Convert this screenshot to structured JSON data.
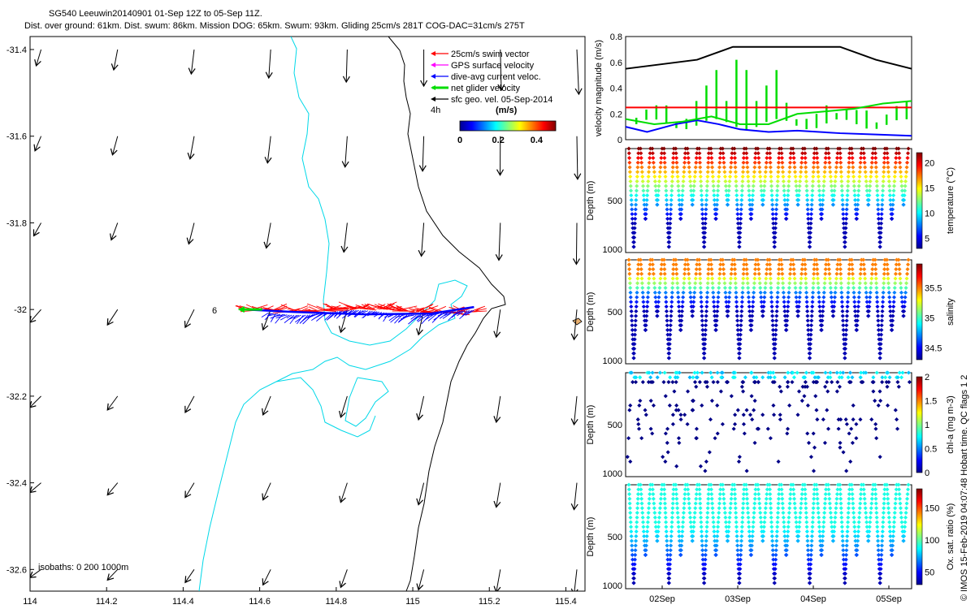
{
  "title": {
    "line1": "SG540 Leeuwin20140901 01-Sep 12Z to 05-Sep 11Z.",
    "line2": "Dist. over ground: 61km. Dist. swum: 86km. Mission DOG: 65km. Swum: 93km. Gliding 25cm/s 281T COG-DAC=31cm/s 275T"
  },
  "credit": "© IMOS 15-Feb-2019 04:07:48 Hobart time. QC flags 1  2",
  "chart_data": [
    {
      "type": "map",
      "name": "glider-track-map",
      "xlim": [
        114,
        115.45
      ],
      "ylim": [
        -32.65,
        -31.37
      ],
      "x_ticks": [
        "114",
        "114.2",
        "114.4",
        "114.6",
        "114.8",
        "115",
        "115.2",
        "115.4"
      ],
      "y_ticks": [
        "-31.4",
        "-31.6",
        "-31.8",
        "-32",
        "-32.2",
        "-32.4",
        "-32.6"
      ],
      "legend": [
        {
          "label": "25cm/s swim vector",
          "color": "#ff0000"
        },
        {
          "label": "GPS surface velocity",
          "color": "#ff00ff"
        },
        {
          "label": "dive-avg current veloc.",
          "color": "#0000ff"
        },
        {
          "label": "net glider velocity",
          "color": "#00dd00"
        },
        {
          "label": "sfc geo. vel. 05-Sep-2014",
          "color": "#000000"
        }
      ],
      "time_label": "4h",
      "colorbar": {
        "label": "(m/s)",
        "ticks": [
          "0",
          "0.2",
          "0.4"
        ],
        "range": [
          0,
          0.5
        ]
      },
      "isobath_label": "isobaths: 0   200  1000m",
      "track_label": "6",
      "track": {
        "lon_start": 114.56,
        "lon_end": 115.16,
        "lat": -32.0
      }
    },
    {
      "type": "line",
      "name": "velocity-panel",
      "ylabel": "velocity magnitude (m/s)",
      "ylim": [
        0,
        0.8
      ],
      "y_ticks": [
        "0",
        "0.2",
        "0.4",
        "0.6",
        "0.8"
      ],
      "x_days": [
        0,
        4
      ],
      "series": [
        {
          "name": "surface geostrophic speed",
          "color": "#000000",
          "x": [
            0,
            1,
            1.5,
            2,
            3,
            3.5,
            4
          ],
          "values": [
            0.55,
            0.62,
            0.72,
            0.72,
            0.72,
            0.62,
            0.55
          ]
        },
        {
          "name": "swim speed",
          "color": "#ff0000",
          "x": [
            0,
            4
          ],
          "values": [
            0.25,
            0.25
          ]
        },
        {
          "name": "dive-avg current",
          "color": "#0000ff",
          "x": [
            0,
            0.3,
            0.7,
            1.0,
            1.3,
            1.6,
            2.0,
            2.4,
            3.0,
            3.5,
            4.0
          ],
          "values": [
            0.1,
            0.06,
            0.12,
            0.15,
            0.12,
            0.08,
            0.06,
            0.07,
            0.05,
            0.04,
            0.03
          ]
        },
        {
          "name": "net glider velocity",
          "color": "#00dd00",
          "x": [
            0,
            0.4,
            0.8,
            1.2,
            1.6,
            2.0,
            2.4,
            2.8,
            3.2,
            3.6,
            4.0
          ],
          "values": [
            0.16,
            0.12,
            0.14,
            0.18,
            0.12,
            0.12,
            0.2,
            0.22,
            0.24,
            0.28,
            0.3
          ]
        }
      ]
    },
    {
      "type": "scatter",
      "name": "temperature-panel",
      "ylabel": "Depth (m)",
      "ylim": [
        0,
        1000
      ],
      "y_ticks": [
        "500",
        "1000"
      ],
      "colorbar_label": "temperature (°C)",
      "colorbar_ticks": [
        "5",
        "10",
        "15",
        "20"
      ],
      "crange": [
        3,
        22
      ]
    },
    {
      "type": "scatter",
      "name": "salinity-panel",
      "ylabel": "Depth (m)",
      "ylim": [
        0,
        1000
      ],
      "y_ticks": [
        "500",
        "1000"
      ],
      "colorbar_label": "salinity",
      "colorbar_ticks": [
        "34.5",
        "35",
        "35.5"
      ],
      "crange": [
        34.3,
        35.9
      ]
    },
    {
      "type": "scatter",
      "name": "chlorophyll-panel",
      "ylabel": "Depth (m)",
      "ylim": [
        0,
        1000
      ],
      "y_ticks": [
        "500",
        "1000"
      ],
      "colorbar_label": "chl-a (mg m-3)",
      "colorbar_ticks": [
        "0",
        "0.5",
        "1",
        "1.5",
        "2"
      ],
      "crange": [
        0,
        2
      ]
    },
    {
      "type": "scatter",
      "name": "oxygen-panel",
      "ylabel": "Depth (m)",
      "ylim": [
        0,
        1000
      ],
      "y_ticks": [
        "500",
        "1000"
      ],
      "x_ticks": [
        "02Sep",
        "03Sep",
        "04Sep",
        "05Sep"
      ],
      "colorbar_label": "Ox. sat. ratio (%)",
      "colorbar_ticks": [
        "50",
        "100",
        "150"
      ],
      "crange": [
        30,
        180
      ]
    }
  ]
}
